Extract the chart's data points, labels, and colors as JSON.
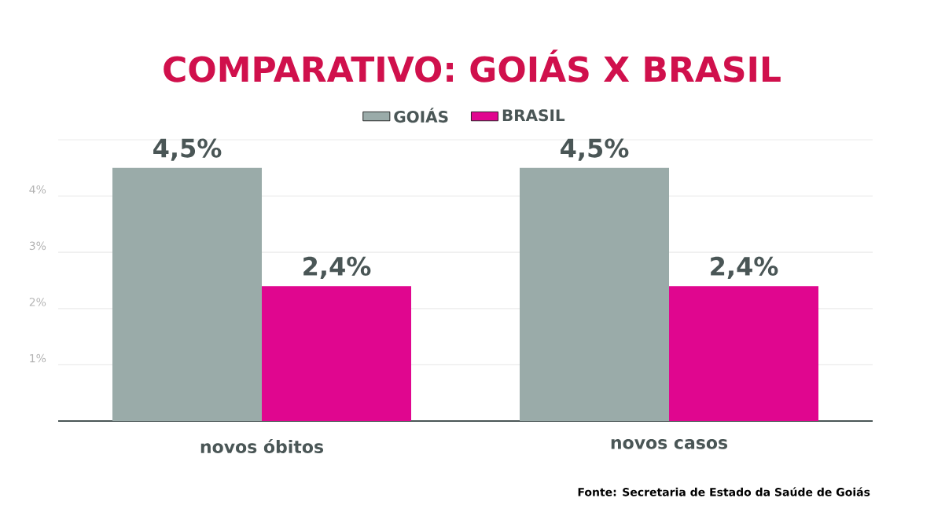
{
  "chart_data": {
    "type": "bar",
    "title": "COMPARATIVO: GOIÁS X BRASIL",
    "categories": [
      "novos óbitos",
      "novos casos"
    ],
    "series": [
      {
        "name": "GOIÁS",
        "color": "#9aaba9",
        "values": [
          4.5,
          4.5
        ],
        "value_labels": [
          "4,5%",
          "4,5%"
        ]
      },
      {
        "name": "BRASIL",
        "color": "#e0068f",
        "values": [
          2.4,
          2.4
        ],
        "value_labels": [
          "2,4%",
          "2,4%"
        ]
      }
    ],
    "ylim": [
      0,
      5
    ],
    "yticks": [
      {
        "value": 1,
        "label": "1%"
      },
      {
        "value": 2,
        "label": "2%"
      },
      {
        "value": 3,
        "label": "3%"
      },
      {
        "value": 4,
        "label": "4%"
      },
      {
        "value": 5,
        "label": null
      }
    ],
    "grid": "y",
    "legend": "top",
    "annotations": [
      "Fonte: Secretaria de Estado da Saúde de Goiás"
    ]
  }
}
